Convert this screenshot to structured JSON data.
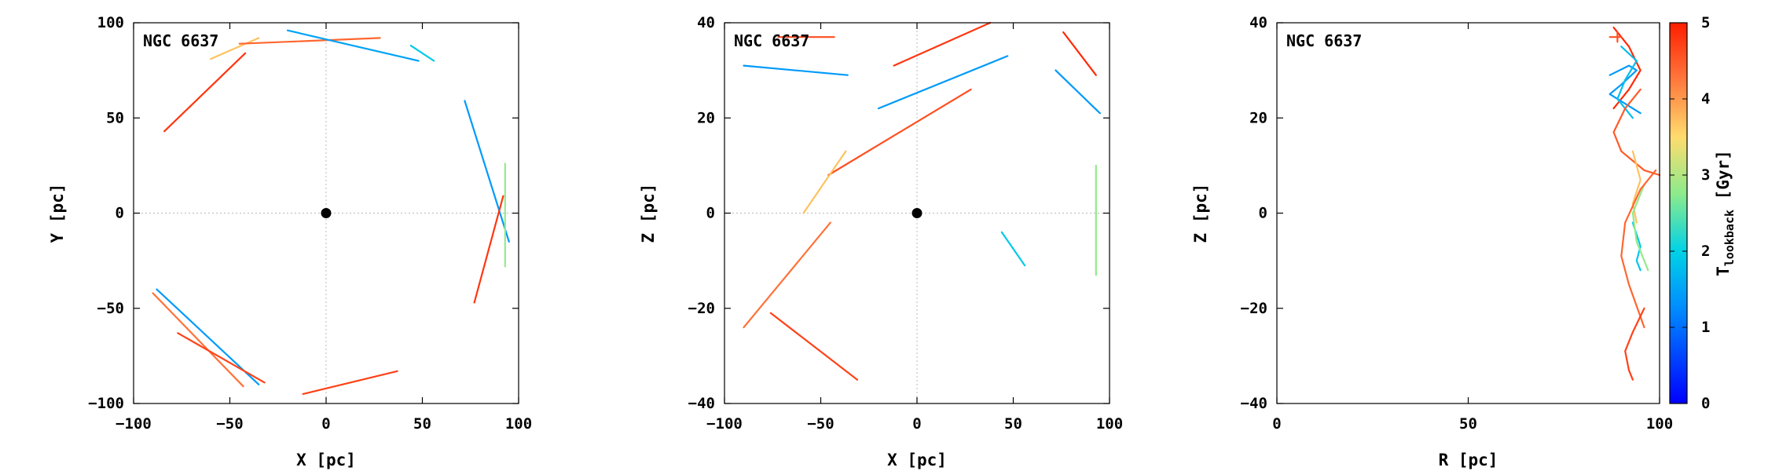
{
  "chart_data": [
    {
      "type": "line",
      "title": "NGC 6637",
      "xlabel": "X [pc]",
      "ylabel": "Y [pc]",
      "xlim": [
        -100,
        100
      ],
      "ylim": [
        -100,
        100
      ],
      "xticks": [
        "−100",
        "−50",
        "0",
        "50",
        "100"
      ],
      "yticks": [
        "−100",
        "−50",
        "0",
        "50",
        "100"
      ],
      "center_marker": [
        0,
        0
      ],
      "grid": "dotted zero lines",
      "segments": [
        {
          "x": [
            -84,
            -42
          ],
          "y": [
            43,
            84
          ],
          "t": 4.8
        },
        {
          "x": [
            -60,
            -35
          ],
          "y": [
            81,
            92
          ],
          "t": 3.7
        },
        {
          "x": [
            -45,
            28
          ],
          "y": [
            89,
            92
          ],
          "t": 4.4
        },
        {
          "x": [
            -20,
            48
          ],
          "y": [
            96,
            80
          ],
          "t": 1.5
        },
        {
          "x": [
            44,
            56
          ],
          "y": [
            88,
            80
          ],
          "t": 1.9
        },
        {
          "x": [
            72,
            95
          ],
          "y": [
            59,
            -15
          ],
          "t": 1.4
        },
        {
          "x": [
            77,
            92
          ],
          "y": [
            -47,
            9
          ],
          "t": 4.8
        },
        {
          "x": [
            93,
            93
          ],
          "y": [
            26,
            -28
          ],
          "t": 2.8
        },
        {
          "x": [
            -88,
            -35
          ],
          "y": [
            -40,
            -90
          ],
          "t": 1.4
        },
        {
          "x": [
            -90,
            -43
          ],
          "y": [
            -42,
            -91
          ],
          "t": 4.3
        },
        {
          "x": [
            -77,
            -32
          ],
          "y": [
            -63,
            -89
          ],
          "t": 4.7
        },
        {
          "x": [
            -12,
            37
          ],
          "y": [
            -95,
            -83
          ],
          "t": 4.7
        }
      ]
    },
    {
      "type": "line",
      "title": "NGC 6637",
      "xlabel": "X [pc]",
      "ylabel": "Z [pc]",
      "xlim": [
        -100,
        100
      ],
      "ylim": [
        -40,
        40
      ],
      "xticks": [
        "−100",
        "−50",
        "0",
        "50",
        "100"
      ],
      "yticks": [
        "−40",
        "−20",
        "0",
        "20",
        "40"
      ],
      "center_marker": [
        0,
        0
      ],
      "grid": "dotted zero lines",
      "segments": [
        {
          "x": [
            -72,
            -43
          ],
          "y": [
            37,
            37
          ],
          "t": 4.6
        },
        {
          "x": [
            -90,
            -36
          ],
          "y": [
            31,
            29
          ],
          "t": 1.4
        },
        {
          "x": [
            -12,
            38
          ],
          "y": [
            31,
            40
          ],
          "t": 4.8
        },
        {
          "x": [
            -20,
            47
          ],
          "y": [
            22,
            33
          ],
          "t": 1.4
        },
        {
          "x": [
            76,
            93
          ],
          "y": [
            38,
            29
          ],
          "t": 4.9
        },
        {
          "x": [
            72,
            95
          ],
          "y": [
            30,
            21
          ],
          "t": 1.4
        },
        {
          "x": [
            -46,
            28
          ],
          "y": [
            8,
            26
          ],
          "t": 4.6
        },
        {
          "x": [
            -59,
            -37
          ],
          "y": [
            0,
            13
          ],
          "t": 3.7
        },
        {
          "x": [
            93,
            93
          ],
          "y": [
            10,
            -13
          ],
          "t": 2.8
        },
        {
          "x": [
            44,
            56
          ],
          "y": [
            -4,
            -11
          ],
          "t": 1.9
        },
        {
          "x": [
            -90,
            -45
          ],
          "y": [
            -24,
            -2
          ],
          "t": 4.3
        },
        {
          "x": [
            -76,
            -31
          ],
          "y": [
            -21,
            -35
          ],
          "t": 4.7
        }
      ]
    },
    {
      "type": "line",
      "title": "NGC 6637",
      "xlabel": "R [pc]",
      "ylabel": "Z [pc]",
      "xlim": [
        0,
        100
      ],
      "ylim": [
        -40,
        40
      ],
      "xticks": [
        "0",
        "50",
        "100"
      ],
      "yticks": [
        "−40",
        "−20",
        "0",
        "20",
        "40"
      ],
      "colorbar": {
        "label": "T",
        "label_sub": "lookback",
        "label_unit": " [Gyr]",
        "range": [
          0,
          5
        ],
        "ticks": [
          "0",
          "1",
          "2",
          "3",
          "4",
          "5"
        ]
      },
      "segments": [
        {
          "x": [
            88,
            92,
            95,
            92,
            88
          ],
          "y": [
            39,
            35,
            30,
            26,
            22
          ],
          "t": 4.9
        },
        {
          "x": [
            87,
            92,
            94,
            90,
            87,
            91,
            95
          ],
          "y": [
            29,
            31,
            30,
            27,
            25,
            23,
            21
          ],
          "t": 1.4
        },
        {
          "x": [
            90,
            94,
            91,
            89,
            93
          ],
          "y": [
            35,
            32,
            28,
            24,
            20
          ],
          "t": 1.8
        },
        {
          "x": [
            87,
            90
          ],
          "y": [
            37,
            37
          ],
          "t": 4.6
        },
        {
          "x": [
            89,
            89
          ],
          "y": [
            38,
            36
          ],
          "t": 4.6
        },
        {
          "x": [
            95,
            91,
            88,
            90,
            96,
            100
          ],
          "y": [
            26,
            22,
            17,
            13,
            9,
            8
          ],
          "t": 4.5
        },
        {
          "x": [
            93,
            95,
            93,
            94
          ],
          "y": [
            13,
            7,
            2,
            -2
          ],
          "t": 3.7
        },
        {
          "x": [
            93,
            95,
            94,
            95
          ],
          "y": [
            -2,
            -7,
            -10,
            -12
          ],
          "t": 1.9
        },
        {
          "x": [
            96,
            93,
            94,
            97
          ],
          "y": [
            6,
            0,
            -6,
            -12
          ],
          "t": 2.8
        },
        {
          "x": [
            99,
            95,
            91,
            90,
            92,
            96
          ],
          "y": [
            9,
            5,
            -2,
            -9,
            -15,
            -24
          ],
          "t": 4.4
        },
        {
          "x": [
            96,
            93,
            91,
            92,
            93
          ],
          "y": [
            -20,
            -25,
            -29,
            -33,
            -35
          ],
          "t": 4.7
        }
      ]
    }
  ]
}
